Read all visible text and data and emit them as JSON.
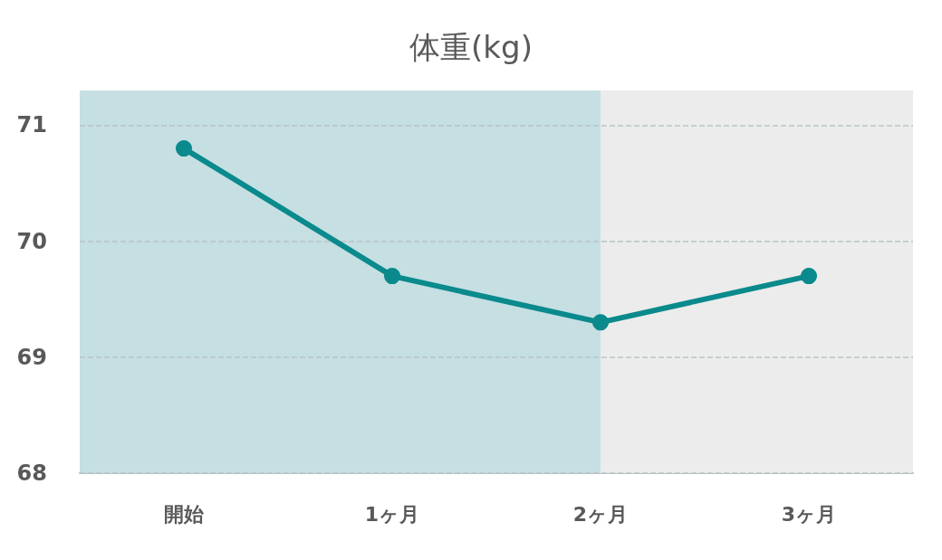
{
  "chart_data": {
    "type": "line",
    "title": "体重(kg)",
    "categories": [
      "開始",
      "1ヶ月",
      "2ヶ月",
      "3ヶ月"
    ],
    "series": [
      {
        "color": "#0a8a8c",
        "values": [
          70.8,
          69.7,
          69.3,
          69.7
        ]
      }
    ],
    "ylim": [
      68,
      71.3
    ],
    "yticks": [
      68,
      69,
      70,
      71
    ],
    "grid": "y",
    "marker": "circle",
    "line_style": "solid",
    "bands": [
      {
        "axis": "x",
        "from": "開始",
        "to": "2ヶ月",
        "color": "#c6dfe3"
      },
      {
        "axis": "x",
        "from": "2ヶ月",
        "to": "3ヶ月",
        "color": "#ececec"
      }
    ]
  }
}
